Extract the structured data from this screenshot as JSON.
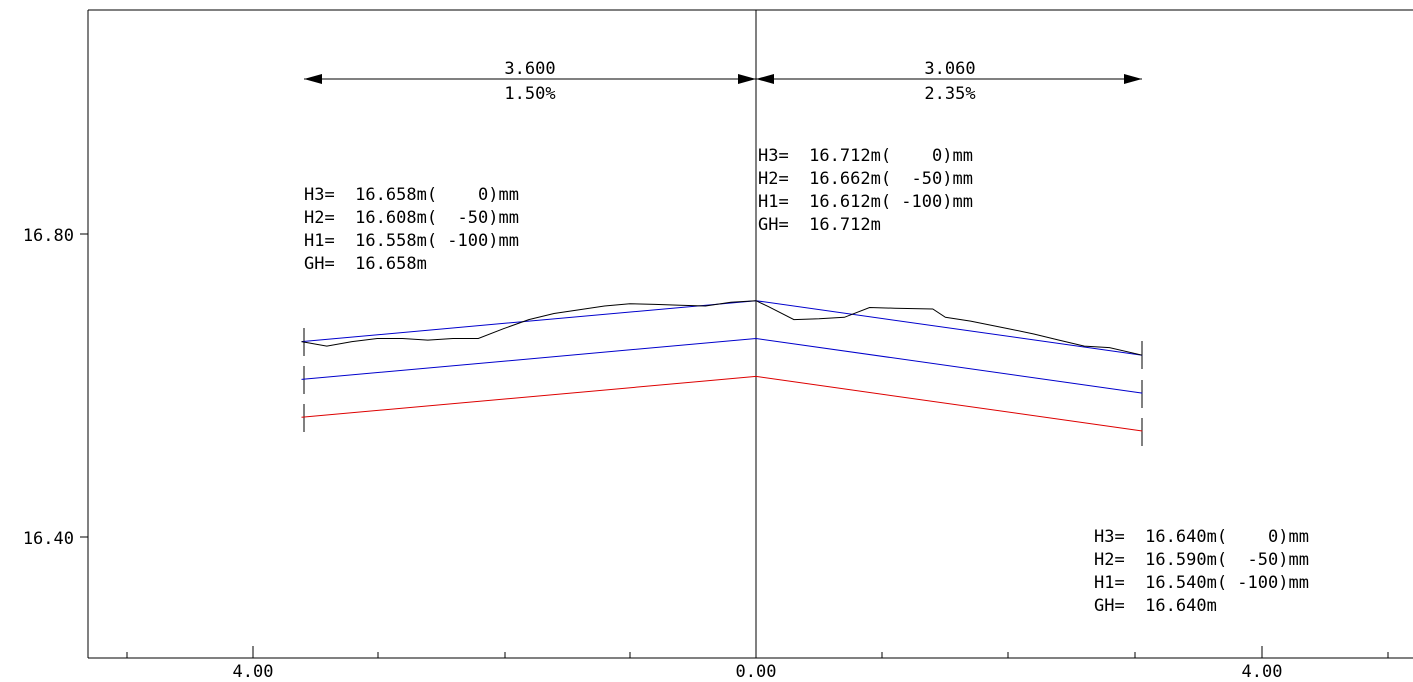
{
  "chart_data": {
    "type": "line",
    "title": "",
    "xlabel": "",
    "ylabel": "",
    "x_ticks": [
      "4.00",
      "0.00",
      "4.00"
    ],
    "y_ticks": [
      "16.80",
      "16.40"
    ],
    "xlim": [
      -4.0,
      5.0
    ],
    "ylim": [
      16.26,
      17.1
    ],
    "colors": {
      "surface": "#000000",
      "h3": "#0000cc",
      "h2": "#0000cc",
      "h1": "#dd0000",
      "axis": "#000000"
    },
    "dimensions": [
      {
        "length": "3.600",
        "slope": "1.50%"
      },
      {
        "length": "3.060",
        "slope": "2.35%"
      }
    ],
    "series": [
      {
        "key": "h3",
        "x": [
          -3.6,
          0.0,
          3.06
        ],
        "y": [
          16.658,
          16.712,
          16.64
        ]
      },
      {
        "key": "h2",
        "x": [
          -3.6,
          0.0,
          3.06
        ],
        "y": [
          16.608,
          16.662,
          16.59
        ]
      },
      {
        "key": "h1",
        "x": [
          -3.6,
          0.0,
          3.06
        ],
        "y": [
          16.558,
          16.612,
          16.54
        ]
      },
      {
        "key": "surface",
        "x": [
          -3.6,
          -3.4,
          -3.2,
          -3.0,
          -2.8,
          -2.6,
          -2.4,
          -2.2,
          -2.0,
          -1.8,
          -1.6,
          -1.4,
          -1.2,
          -1.0,
          -0.8,
          -0.6,
          -0.4,
          -0.2,
          0.0,
          0.1,
          0.3,
          0.5,
          0.7,
          0.9,
          1.1,
          1.4,
          1.5,
          1.7,
          2.0,
          2.2,
          2.4,
          2.6,
          2.8,
          3.06
        ],
        "y": [
          16.658,
          16.652,
          16.658,
          16.662,
          16.662,
          16.66,
          16.662,
          16.662,
          16.675,
          16.687,
          16.695,
          16.7,
          16.705,
          16.708,
          16.707,
          16.706,
          16.705,
          16.71,
          16.712,
          16.704,
          16.687,
          16.688,
          16.69,
          16.703,
          16.702,
          16.701,
          16.69,
          16.685,
          16.675,
          16.668,
          16.66,
          16.652,
          16.65,
          16.64
        ]
      }
    ],
    "annotations": [
      {
        "lines": [
          "H3=  16.658m(    0)mm",
          "H2=  16.608m(  -50)mm",
          "H1=  16.558m( -100)mm",
          "GH=  16.658m"
        ]
      },
      {
        "lines": [
          "H3=  16.712m(    0)mm",
          "H2=  16.662m(  -50)mm",
          "H1=  16.612m( -100)mm",
          "GH=  16.712m"
        ]
      },
      {
        "lines": [
          "H3=  16.640m(    0)mm",
          "H2=  16.590m(  -50)mm",
          "H1=  16.540m( -100)mm",
          "GH=  16.640m"
        ]
      }
    ]
  }
}
